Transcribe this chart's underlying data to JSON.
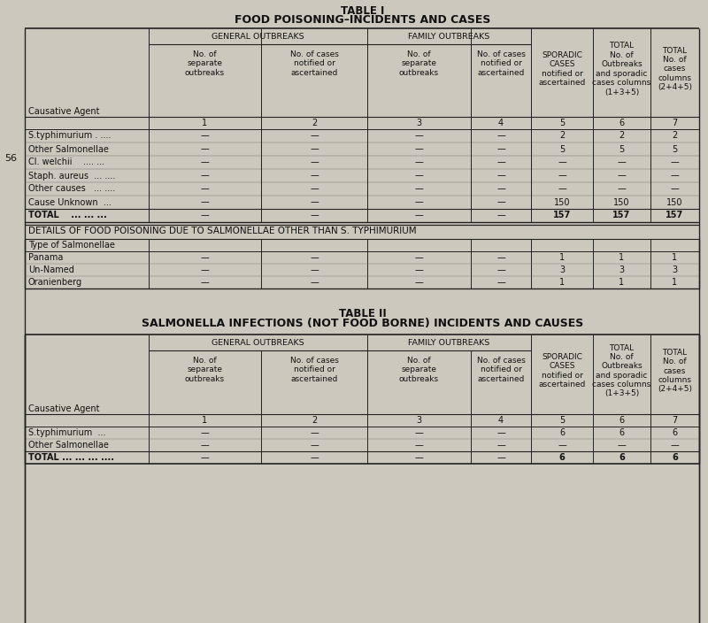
{
  "bg_color": "#cdc8be",
  "white_color": "#e8e4de",
  "table1_title1": "TABLE I",
  "table1_title2": "FOOD POISONING–INCIDENTS AND CASES",
  "table2_title1": "TABLE II",
  "table2_title2": "SALMONELLA INFECTIONS (NOT FOOD BORNE) INCIDENTS AND CAUSES",
  "details_title": "DETAILS OF FOOD POISONING DUE TO SALMONELLAE OTHER THAN S. TYPHIMURIUM",
  "spor_text": "SPORADIC\nCASES\nnotified or\nascertained",
  "tot1_text": "TOTAL\nNo. of\nOutbreaks\nand sporadic\ncases columns\n(1+3+5)",
  "tot2_text": "TOTAL\nNo. of\ncases\ncolumns\n(2+4+5)",
  "subhdr_gen1": "No. of\nseparate\noutbreaks",
  "subhdr_gen2": "No. of cases\nnotified or\nascertained",
  "subhdr_fam1": "No. of\nseparate\noutbreaks",
  "subhdr_fam2": "No. of cases\nnotified or\nascertained",
  "causative_agent": "Causative Agent",
  "type_salmonellae": "Type of Salmonellae",
  "page_number": "56",
  "table1_rows": [
    [
      "S.typhimurium . ....",
      "—",
      "—",
      "—",
      "—",
      "2",
      "2",
      "2"
    ],
    [
      "Other Salmonellae",
      "—",
      "—",
      "—",
      "—",
      "5",
      "5",
      "5"
    ],
    [
      "Cl. welchii    .... ...",
      "—",
      "—",
      "—",
      "—",
      "—",
      "—",
      "—"
    ],
    [
      "Staph. aureus  ... ....",
      "—",
      "—",
      "—",
      "—",
      "—",
      "—",
      "—"
    ],
    [
      "Other causes   ... ....",
      "—",
      "—",
      "—",
      "—",
      "—",
      "—",
      "—"
    ],
    [
      "Cause Unknown  ...",
      "—",
      "—",
      "—",
      "—",
      "150",
      "150",
      "150"
    ],
    [
      "TOTAL    ... ... ...",
      "—",
      "—",
      "—",
      "—",
      "157",
      "157",
      "157"
    ]
  ],
  "salmonellae_rows": [
    [
      "Panama",
      "—",
      "—",
      "—",
      "—",
      "1",
      "1",
      "1"
    ],
    [
      "Un-Named",
      "—",
      "—",
      "—",
      "—",
      "3",
      "3",
      "3"
    ],
    [
      "Oranienberg",
      "—",
      "—",
      "—",
      "—",
      "1",
      "1",
      "1"
    ]
  ],
  "table2_rows": [
    [
      "S.typhimurium  ...",
      "—",
      "—",
      "—",
      "—",
      "6",
      "6",
      "6"
    ],
    [
      "Other Salmonellae",
      "—",
      "—",
      "—",
      "—",
      "—",
      "—",
      "—"
    ],
    [
      "TOTAL ... ... ... ....",
      "—",
      "—",
      "—",
      "—",
      "6",
      "6",
      "6"
    ]
  ]
}
